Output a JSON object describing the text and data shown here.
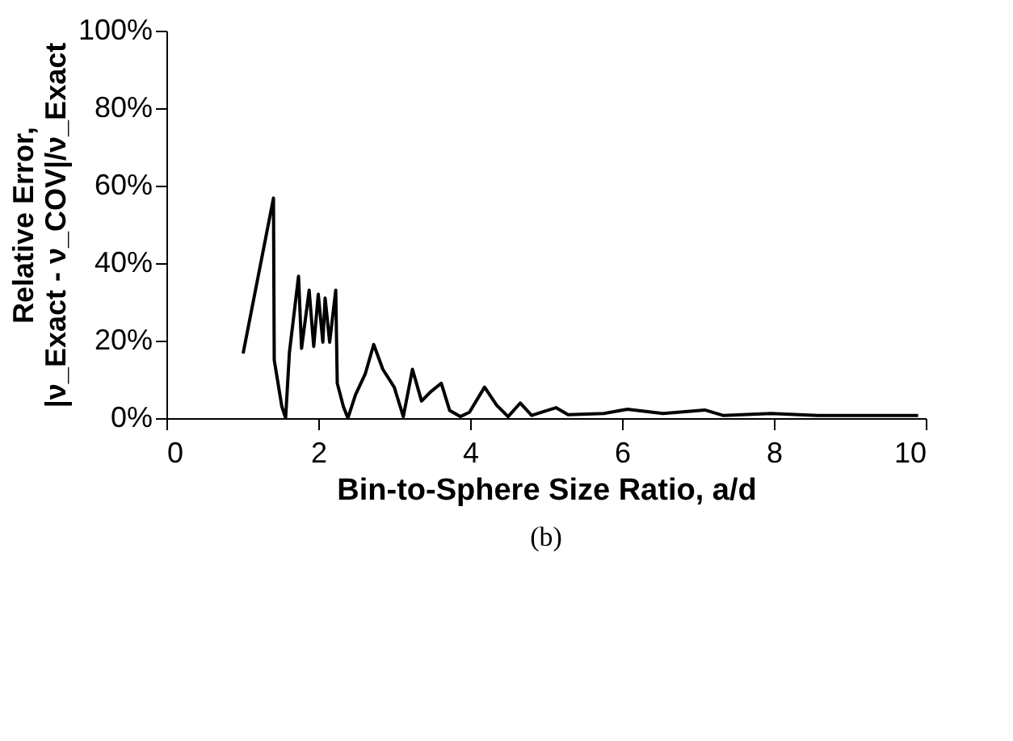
{
  "chart_data": {
    "type": "line",
    "xlabel": "Bin-to-Sphere Size Ratio, a/d",
    "ylabel": "Relative Error,\n|ν_Exact - ν_COV|/ν_Exact",
    "annotations": [
      "(b)"
    ],
    "x": [
      1.01,
      1.41,
      1.42,
      1.52,
      1.57,
      1.62,
      1.74,
      1.78,
      1.88,
      1.94,
      2.0,
      2.06,
      2.09,
      2.15,
      2.23,
      2.25,
      2.33,
      2.39,
      2.49,
      2.62,
      2.73,
      2.85,
      3.0,
      3.12,
      3.24,
      3.36,
      3.48,
      3.62,
      3.73,
      3.87,
      3.99,
      4.19,
      4.35,
      4.5,
      4.66,
      4.81,
      5.13,
      5.29,
      5.76,
      6.07,
      6.54,
      7.09,
      7.33,
      7.96,
      8.58,
      9.52,
      9.9
    ],
    "series": [
      {
        "color": "#000000",
        "values": [
          16.7,
          56.8,
          15,
          3,
          0,
          17,
          36.6,
          18,
          33,
          18.5,
          32,
          19.6,
          31,
          19.6,
          33,
          9,
          3,
          0,
          6,
          11.5,
          19,
          12.6,
          8,
          0.4,
          12.6,
          4.4,
          6.8,
          9,
          2,
          0.4,
          1.5,
          8,
          3.3,
          0.4,
          3.9,
          0.7,
          2.7,
          0.9,
          1.2,
          2.3,
          1.2,
          2.1,
          0.7,
          1.2,
          0.7,
          0.7,
          0.7
        ]
      }
    ],
    "xlim": [
      0,
      10
    ],
    "xticks": [
      0,
      2,
      4,
      6,
      8,
      10
    ],
    "ylim": [
      0,
      100
    ],
    "yticks": [
      {
        "value": 0,
        "label": "0%"
      },
      {
        "value": 20,
        "label": "20%"
      },
      {
        "value": 40,
        "label": "40%"
      },
      {
        "value": 60,
        "label": "60%"
      },
      {
        "value": 80,
        "label": "80%"
      },
      {
        "value": 100,
        "label": "100%"
      }
    ],
    "grid": false,
    "marker": "none",
    "line_style": "solid"
  }
}
